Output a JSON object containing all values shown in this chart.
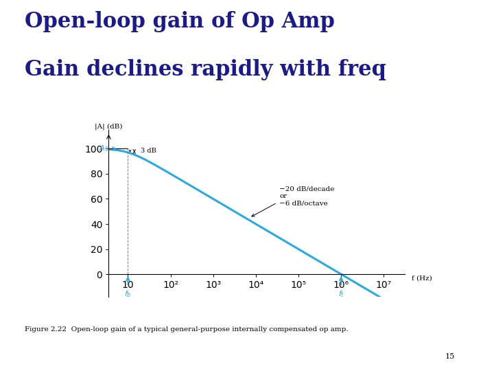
{
  "title_line1": "Open-loop gain of Op Amp",
  "title_line2": "Gain declines rapidly with freq",
  "title_color": "#1a1a8c",
  "title_fontsize": 22,
  "bg_color": "#ffffff",
  "curve_color": "#29abe2",
  "curve_linewidth": 2.2,
  "A0_dB": 100,
  "f_break": 10,
  "ylabel": "|A| (dB)",
  "xlabel": "f (Hz)",
  "yticks": [
    0,
    20,
    40,
    60,
    80,
    100
  ],
  "xtick_labels": [
    "10",
    "10²",
    "10³",
    "10⁴",
    "10⁵",
    "10⁶",
    "10⁷"
  ],
  "xtick_positions": [
    1,
    2,
    3,
    4,
    5,
    6,
    7
  ],
  "annotation_slope": "−20 dB/decade\nor\n−6 dB/octave",
  "figure_caption": "Figure 2.22  Open-loop gain of a typical general-purpose internally compensated op amp.",
  "page_number": "15"
}
